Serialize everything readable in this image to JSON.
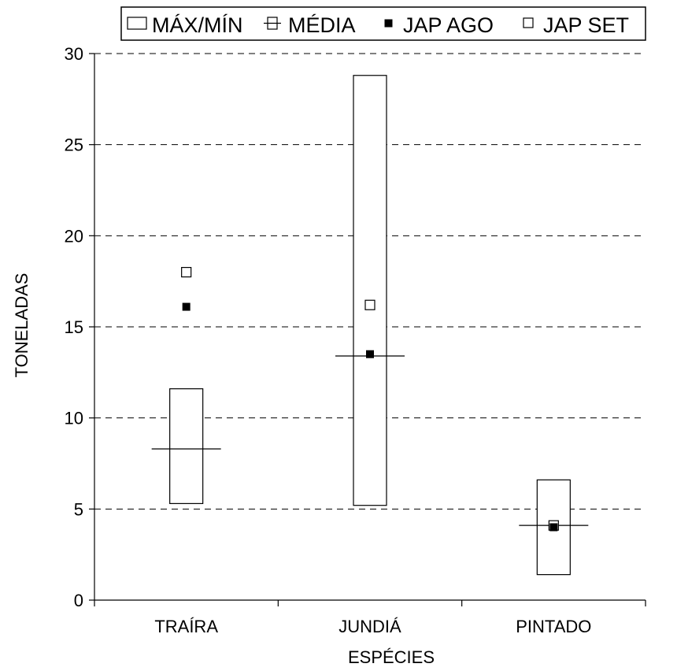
{
  "chart_data": {
    "type": "box",
    "title": "",
    "xlabel": "ESPÉCIES",
    "ylabel": "TONELADAS",
    "ylim": [
      0,
      30
    ],
    "yticks": [
      0,
      5,
      10,
      15,
      20,
      25,
      30
    ],
    "grid": "horizontal dashed",
    "legend_position": "top",
    "legend": [
      {
        "key": "range",
        "label": "MÁX/MÍN"
      },
      {
        "key": "mean",
        "label": "MÉDIA"
      },
      {
        "key": "ago",
        "label": "JAP AGO"
      },
      {
        "key": "set",
        "label": "JAP SET"
      }
    ],
    "categories": [
      "TRAÍRA",
      "JUNDIÁ",
      "PINTADO"
    ],
    "series": [
      {
        "name": "MÁX/MÍN",
        "max": [
          11.6,
          28.8,
          6.6
        ],
        "min": [
          5.3,
          5.2,
          1.4
        ]
      },
      {
        "name": "MÉDIA",
        "values": [
          8.3,
          13.4,
          4.1
        ]
      },
      {
        "name": "JAP AGO",
        "values": [
          16.1,
          13.5,
          4.0
        ]
      },
      {
        "name": "JAP SET",
        "values": [
          18.0,
          16.2,
          4.1
        ]
      }
    ]
  }
}
